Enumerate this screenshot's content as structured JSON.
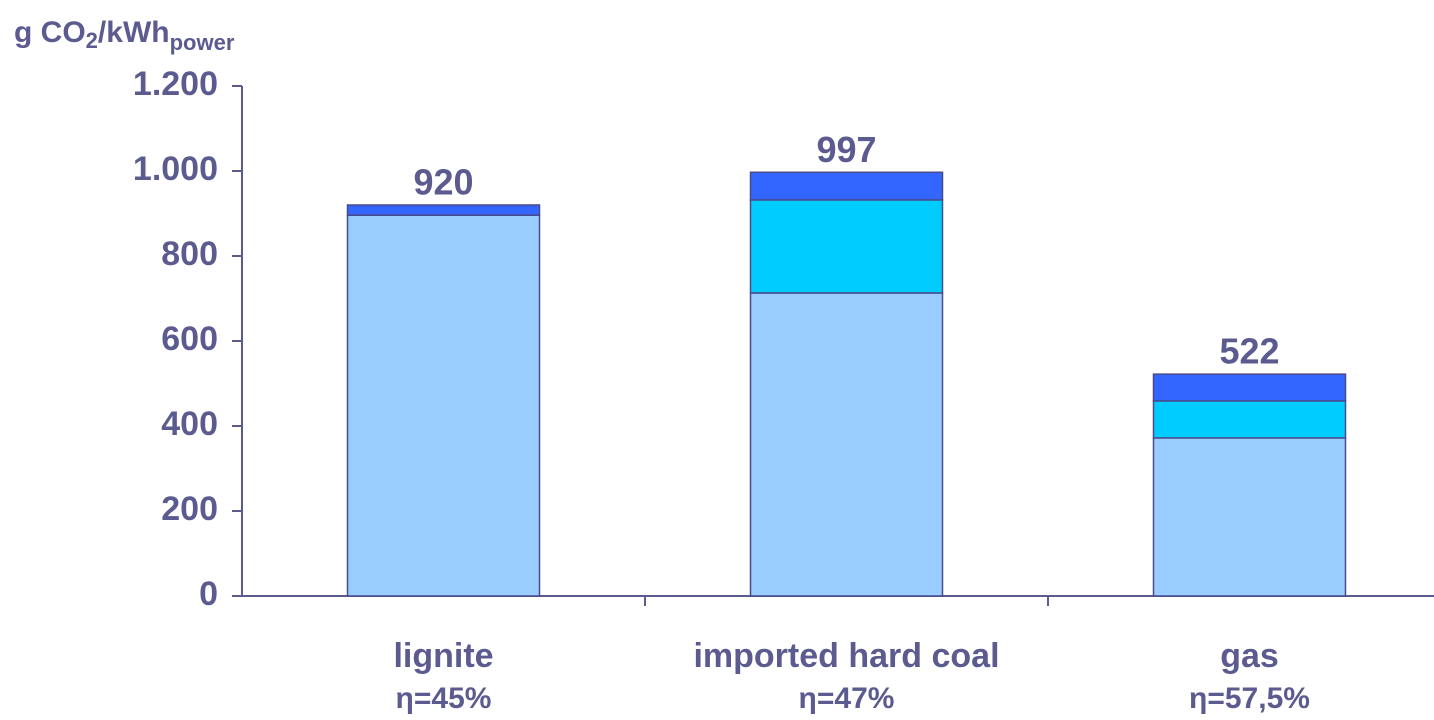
{
  "chart_data": {
    "type": "stacked_bar",
    "ylabel": [
      "g CO",
      "2",
      "/kWh",
      "power"
    ],
    "categories": [
      "lignite",
      "imported hard coal",
      "gas"
    ],
    "efficiency_labels": [
      "η=45%",
      "η=47%",
      "η=57,5%"
    ],
    "series": [
      {
        "color": "#99ccff",
        "values": [
          896,
          713,
          372
        ]
      },
      {
        "color": "#00ccff",
        "values": [
          0,
          219,
          87
        ]
      },
      {
        "color": "#3366ff",
        "values": [
          24,
          65,
          63
        ]
      }
    ],
    "totals": [
      920,
      997,
      522
    ],
    "ylim": [
      0,
      1200
    ],
    "yticks": [
      0,
      200,
      400,
      600,
      800,
      {
        "value": 1000,
        "label": "1.000"
      },
      {
        "value": 1200,
        "label": "1.200"
      }
    ]
  }
}
